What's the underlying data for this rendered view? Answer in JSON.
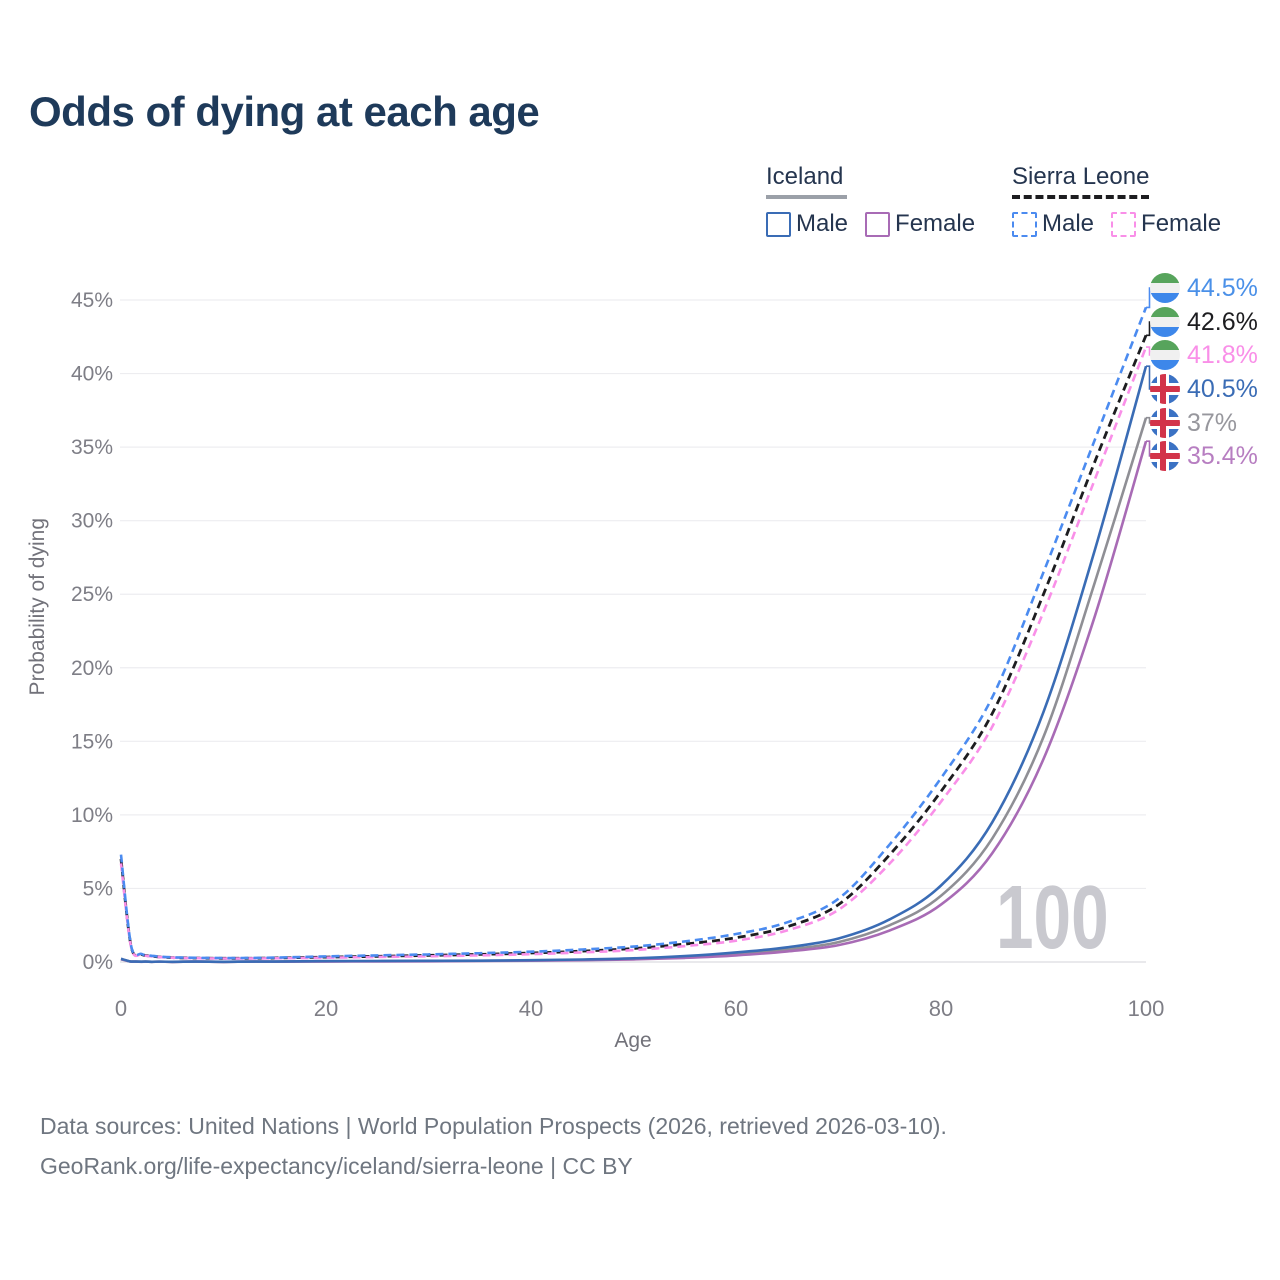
{
  "title": "Odds of dying at each age",
  "age_indicator": "100",
  "legend": {
    "groups": [
      {
        "id": "iceland",
        "label": "Iceland",
        "line_style": "solid",
        "line_color": "#9ba0a8",
        "items": [
          {
            "id": "is-male",
            "label": "Male",
            "color": "#3a6cb5",
            "dash": false
          },
          {
            "id": "is-female",
            "label": "Female",
            "color": "#a86bb5",
            "dash": false
          }
        ]
      },
      {
        "id": "sierra-leone",
        "label": "Sierra Leone",
        "line_style": "dashed",
        "line_color": "#1d1d20",
        "items": [
          {
            "id": "sl-male",
            "label": "Male",
            "color": "#4b8bf0",
            "dash": true
          },
          {
            "id": "sl-female",
            "label": "Female",
            "color": "#f98fe8",
            "dash": true
          }
        ]
      }
    ]
  },
  "chart_data": {
    "type": "line",
    "title": "Odds of dying at each age",
    "xlabel": "Age",
    "ylabel": "Probability of dying",
    "x_ticks": [
      0,
      20,
      40,
      60,
      80,
      100
    ],
    "y_ticks": [
      "0%",
      "5%",
      "10%",
      "15%",
      "20%",
      "25%",
      "30%",
      "35%",
      "40%",
      "45%"
    ],
    "xlim": [
      0,
      100
    ],
    "ylim_pct": [
      0,
      45
    ],
    "grid": "horizontal-only",
    "legend_position": "top-right",
    "ages": [
      0,
      1,
      2,
      3,
      5,
      10,
      15,
      20,
      25,
      30,
      35,
      40,
      45,
      50,
      55,
      60,
      65,
      70,
      75,
      80,
      85,
      90,
      95,
      100
    ],
    "series": [
      {
        "id": "is-total",
        "name": "Iceland Total",
        "color": "#8f8f95",
        "label_color": "#97979d",
        "dash": null,
        "width": 2.6,
        "end_value_pct": 37,
        "values": [
          0.2,
          0.025,
          0.018,
          0.013,
          0.01,
          0.01,
          0.025,
          0.045,
          0.055,
          0.065,
          0.08,
          0.1,
          0.14,
          0.21,
          0.33,
          0.54,
          0.85,
          1.35,
          2.5,
          4.5,
          8.4,
          15.3,
          25.8,
          37.0
        ]
      },
      {
        "id": "is-female",
        "name": "Iceland Female",
        "color": "#a86bb5",
        "label_color": "#b77ec1",
        "dash": null,
        "width": 2.6,
        "end_value_pct": 35.4,
        "values": [
          0.19,
          0.02,
          0.015,
          0.012,
          0.009,
          0.009,
          0.02,
          0.03,
          0.04,
          0.05,
          0.07,
          0.09,
          0.12,
          0.18,
          0.28,
          0.45,
          0.72,
          1.15,
          2.15,
          3.9,
          7.4,
          13.8,
          23.5,
          35.4
        ]
      },
      {
        "id": "is-male",
        "name": "Iceland Male",
        "color": "#3a6cb5",
        "label_color": "#3a6cb5",
        "dash": null,
        "width": 2.6,
        "end_value_pct": 40.5,
        "values": [
          0.22,
          0.03,
          0.02,
          0.015,
          0.012,
          0.012,
          0.03,
          0.06,
          0.07,
          0.08,
          0.09,
          0.12,
          0.17,
          0.25,
          0.4,
          0.65,
          1.0,
          1.6,
          2.9,
          5.2,
          9.5,
          17.0,
          28.0,
          40.5
        ]
      },
      {
        "id": "sl-total",
        "name": "Sierra Leone Total",
        "color": "#1d1d20",
        "label_color": "#1d1d20",
        "dash": [
          8,
          5
        ],
        "width": 2.8,
        "end_value_pct": 42.6,
        "values": [
          7.0,
          1.0,
          0.52,
          0.4,
          0.3,
          0.25,
          0.27,
          0.33,
          0.39,
          0.45,
          0.52,
          0.61,
          0.74,
          0.92,
          1.22,
          1.65,
          2.4,
          3.9,
          7.3,
          11.6,
          16.9,
          25.0,
          34.0,
          42.6
        ]
      },
      {
        "id": "sl-female",
        "name": "Sierra Leone Female",
        "color": "#f98fe8",
        "label_color": "#f98fe8",
        "dash": [
          8,
          5
        ],
        "width": 2.6,
        "end_value_pct": 41.8,
        "values": [
          6.7,
          0.95,
          0.5,
          0.38,
          0.29,
          0.24,
          0.25,
          0.29,
          0.34,
          0.39,
          0.45,
          0.53,
          0.65,
          0.81,
          1.08,
          1.45,
          2.15,
          3.55,
          6.7,
          10.9,
          16.0,
          23.8,
          32.8,
          41.8
        ]
      },
      {
        "id": "sl-male",
        "name": "Sierra Leone Male",
        "color": "#4b8bf0",
        "label_color": "#4a90e8",
        "dash": [
          8,
          5
        ],
        "width": 2.6,
        "end_value_pct": 44.5,
        "values": [
          7.3,
          1.05,
          0.55,
          0.42,
          0.32,
          0.27,
          0.3,
          0.38,
          0.45,
          0.52,
          0.6,
          0.7,
          0.85,
          1.05,
          1.4,
          1.9,
          2.7,
          4.3,
          8.0,
          12.5,
          18.0,
          26.5,
          35.5,
          44.5
        ]
      }
    ]
  },
  "end_labels": [
    {
      "series": "sl-male",
      "flag": "sierra-leone",
      "value": "44.5%"
    },
    {
      "series": "sl-total",
      "flag": "sierra-leone",
      "value": "42.6%"
    },
    {
      "series": "sl-female",
      "flag": "sierra-leone",
      "value": "41.8%"
    },
    {
      "series": "is-male",
      "flag": "iceland",
      "value": "40.5%"
    },
    {
      "series": "is-total",
      "flag": "iceland",
      "value": "37%"
    },
    {
      "series": "is-female",
      "flag": "iceland",
      "value": "35.4%"
    }
  ],
  "footer": {
    "line1": "Data sources: United Nations | World Population Prospects (2026, retrieved 2026-03-10).",
    "line2": "GeoRank.org/life-expectancy/iceland/sierra-leone | CC BY"
  },
  "flags": {
    "sierra_leone": {
      "top": "#57a45c",
      "middle": "#f0f0f0",
      "bottom": "#3d87ea"
    },
    "iceland": {
      "background": "#3b72c4",
      "cross": "#ffffff",
      "inner_cross": "#d2344a"
    }
  }
}
